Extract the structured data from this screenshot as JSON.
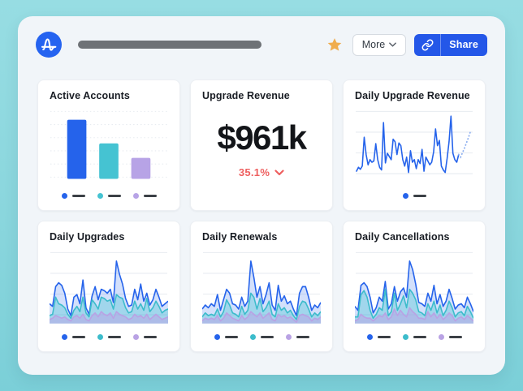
{
  "colors": {
    "blue": "#2563eb",
    "teal": "#45c3d2",
    "purple": "#b7a3e6",
    "blue_fill": "rgba(37,99,235,0.20)",
    "teal_fill": "rgba(69,195,210,0.35)",
    "purple_fill": "rgba(185,162,228,0.50)",
    "delta_red": "#ee5f5f",
    "star_amber": "#f0ad4e",
    "share_blue": "#2457e8",
    "logo_blue": "#2563f0"
  },
  "header": {
    "logo_name": "amplitude-logo",
    "title_placeholder": "redacted-bar",
    "more_label": "More",
    "share_label": "Share"
  },
  "cards": [
    {
      "title": "Active Accounts"
    },
    {
      "title": "Upgrade Revenue",
      "value": "$961k",
      "delta": "35.1%",
      "delta_direction": "down"
    },
    {
      "title": "Daily Upgrade Revenue"
    },
    {
      "title": "Daily Upgrades"
    },
    {
      "title": "Daily Renewals"
    },
    {
      "title": "Daily Cancellations"
    }
  ],
  "chart_data": [
    {
      "type": "bar",
      "title": "Active Accounts",
      "categories": [
        "series-1",
        "series-2",
        "series-3"
      ],
      "values": [
        90,
        54,
        32
      ],
      "colors": [
        "#2563eb",
        "#45c3d2",
        "#b7a3e6"
      ],
      "grid_lines": 6,
      "grid_style": "dotted",
      "ylim": [
        0,
        100
      ],
      "legend_position": "bottom",
      "legend_labels_redacted": true
    },
    {
      "type": "line",
      "title": "Daily Upgrade Revenue",
      "series": [
        {
          "name": "revenue",
          "color": "#2563eb",
          "values": [
            12,
            18,
            15,
            20,
            65,
            38,
            22,
            30,
            26,
            28,
            55,
            30,
            18,
            14,
            88,
            25,
            40,
            35,
            30,
            62,
            58,
            38,
            56,
            52,
            30,
            20,
            34,
            10,
            44,
            26,
            30,
            16,
            30,
            24,
            46,
            12,
            34,
            28,
            22,
            26,
            42,
            78,
            52,
            60,
            20,
            14,
            10,
            32,
            58,
            98,
            40,
            30,
            26,
            38,
            34,
            41,
            48,
            56,
            64,
            73
          ]
        }
      ],
      "forecast": 6,
      "forecast_style": "dotted",
      "grid_lines": 4,
      "ylim": [
        0,
        100
      ],
      "legend_position": "bottom",
      "legend_labels_redacted": true
    },
    {
      "type": "area",
      "title": "Daily Upgrades",
      "series": [
        {
          "name": "series-blue",
          "color": "#2563eb",
          "fill": "rgba(37,99,235,0.20)",
          "values": [
            30,
            26,
            56,
            62,
            58,
            46,
            22,
            12,
            40,
            44,
            30,
            66,
            24,
            14,
            42,
            56,
            36,
            52,
            50,
            46,
            52,
            32,
            95,
            75,
            60,
            38,
            26,
            28,
            52,
            36,
            60,
            34,
            46,
            28,
            36,
            52,
            40,
            26,
            30,
            34
          ]
        },
        {
          "name": "series-teal",
          "color": "#3cbccb",
          "fill": "rgba(69,195,210,0.35)",
          "values": [
            12,
            14,
            40,
            30,
            28,
            24,
            14,
            8,
            20,
            26,
            18,
            40,
            16,
            10,
            36,
            30,
            22,
            40,
            38,
            34,
            36,
            22,
            44,
            40,
            38,
            24,
            16,
            18,
            34,
            22,
            30,
            20,
            38,
            18,
            24,
            34,
            26,
            16,
            20,
            22
          ]
        },
        {
          "name": "series-purple",
          "color": "#b9a2e4",
          "fill": "rgba(185,162,228,0.50)",
          "values": [
            6,
            8,
            12,
            10,
            8,
            10,
            6,
            4,
            10,
            12,
            8,
            14,
            6,
            4,
            12,
            16,
            10,
            18,
            14,
            12,
            16,
            8,
            18,
            14,
            12,
            10,
            6,
            8,
            14,
            10,
            12,
            8,
            14,
            6,
            10,
            14,
            10,
            6,
            8,
            10
          ]
        }
      ],
      "grid_lines": 4,
      "ylim": [
        0,
        100
      ],
      "legend_position": "bottom",
      "legend_labels_redacted": true
    },
    {
      "type": "area",
      "title": "Daily Renewals",
      "series": [
        {
          "name": "series-blue",
          "color": "#2563eb",
          "fill": "rgba(37,99,235,0.20)",
          "values": [
            22,
            28,
            24,
            30,
            26,
            44,
            20,
            36,
            52,
            46,
            30,
            28,
            22,
            40,
            26,
            34,
            95,
            70,
            40,
            56,
            30,
            44,
            62,
            28,
            20,
            58,
            34,
            42,
            30,
            34,
            22,
            12,
            46,
            56,
            56,
            40,
            20,
            28,
            24,
            32
          ]
        },
        {
          "name": "series-teal",
          "color": "#3cbccb",
          "fill": "rgba(69,195,210,0.35)",
          "values": [
            10,
            16,
            12,
            14,
            12,
            22,
            10,
            18,
            36,
            28,
            16,
            14,
            10,
            26,
            14,
            20,
            46,
            40,
            22,
            38,
            18,
            24,
            34,
            14,
            10,
            30,
            20,
            24,
            16,
            20,
            12,
            6,
            26,
            34,
            32,
            22,
            10,
            16,
            12,
            18
          ]
        },
        {
          "name": "series-purple",
          "color": "#b9a2e4",
          "fill": "rgba(185,162,228,0.50)",
          "values": [
            4,
            8,
            6,
            8,
            6,
            12,
            4,
            8,
            16,
            12,
            8,
            6,
            4,
            12,
            6,
            10,
            18,
            14,
            10,
            16,
            8,
            12,
            16,
            6,
            4,
            14,
            10,
            12,
            8,
            10,
            6,
            2,
            12,
            14,
            12,
            10,
            4,
            8,
            6,
            10
          ]
        }
      ],
      "grid_lines": 4,
      "ylim": [
        0,
        100
      ],
      "legend_position": "bottom",
      "legend_labels_redacted": true
    },
    {
      "type": "area",
      "title": "Daily Cancellations",
      "series": [
        {
          "name": "series-blue",
          "color": "#2563eb",
          "fill": "rgba(37,99,235,0.20)",
          "values": [
            26,
            20,
            58,
            62,
            56,
            40,
            16,
            24,
            40,
            34,
            64,
            22,
            30,
            56,
            34,
            48,
            54,
            40,
            95,
            82,
            60,
            32,
            30,
            26,
            46,
            34,
            58,
            30,
            44,
            26,
            34,
            52,
            38,
            22,
            28,
            30,
            24,
            40,
            30,
            18
          ]
        },
        {
          "name": "series-teal",
          "color": "#3cbccb",
          "fill": "rgba(69,195,210,0.35)",
          "values": [
            10,
            10,
            44,
            50,
            40,
            20,
            8,
            14,
            24,
            20,
            52,
            12,
            18,
            46,
            20,
            30,
            42,
            24,
            52,
            46,
            36,
            18,
            16,
            12,
            30,
            20,
            34,
            16,
            28,
            12,
            20,
            34,
            24,
            10,
            16,
            18,
            12,
            26,
            18,
            8
          ]
        },
        {
          "name": "series-purple",
          "color": "#b9a2e4",
          "fill": "rgba(185,162,228,0.50)",
          "values": [
            4,
            6,
            14,
            10,
            8,
            8,
            4,
            8,
            12,
            10,
            16,
            6,
            10,
            22,
            12,
            20,
            14,
            10,
            24,
            18,
            14,
            8,
            8,
            6,
            18,
            10,
            16,
            8,
            14,
            6,
            10,
            16,
            12,
            4,
            8,
            10,
            6,
            12,
            8,
            4
          ]
        }
      ],
      "grid_lines": 4,
      "ylim": [
        0,
        100
      ],
      "legend_position": "bottom",
      "legend_labels_redacted": true
    }
  ]
}
